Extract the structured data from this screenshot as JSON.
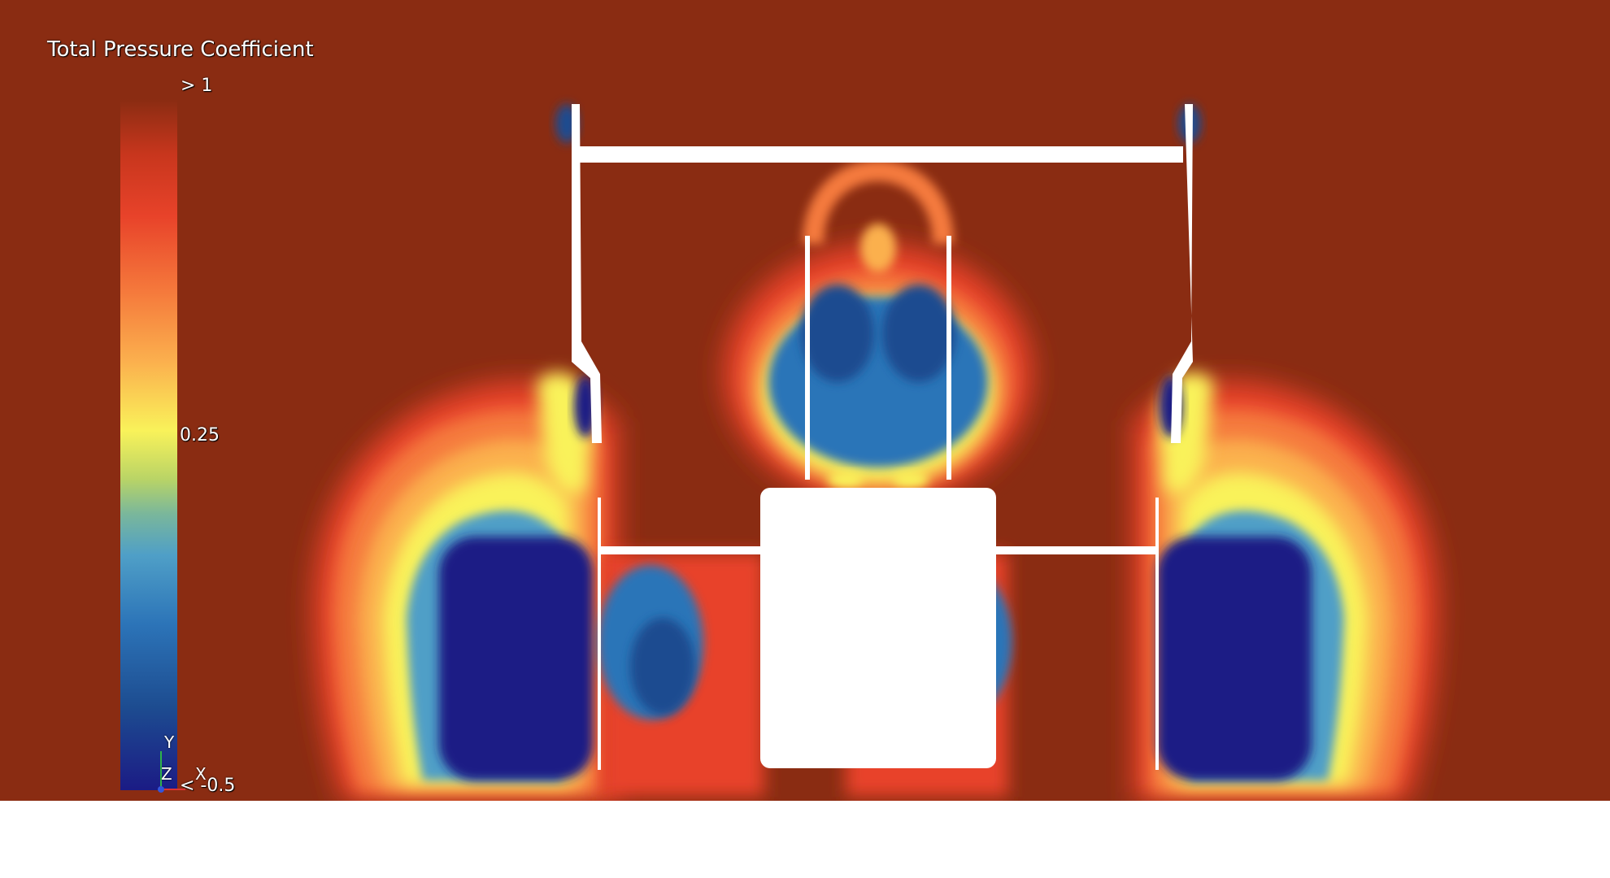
{
  "legend": {
    "title": "Total Pressure Coefficient",
    "max_label": "> 1",
    "mid_label": "0.25",
    "min_label": "< -0.5",
    "range": [
      -0.5,
      1
    ],
    "colormap": [
      "#1b1b85",
      "#1f4e9a",
      "#2f78bb",
      "#5fa9c9",
      "#8fc48e",
      "#f5f25a",
      "#fbb14e",
      "#f47c3c",
      "#e2432a",
      "#aa2e1a",
      "#8a2c12"
    ]
  },
  "axes_triad": {
    "y": "Y",
    "z": "Z",
    "x": "X"
  },
  "colors": {
    "background": "#8a2c12",
    "geometry": "#ffffff",
    "core_low": "#1b1b85"
  }
}
